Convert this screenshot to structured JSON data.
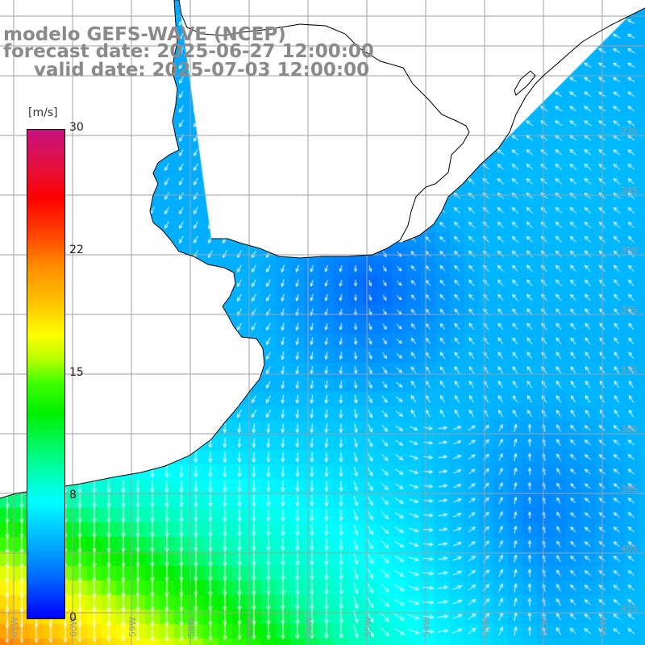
{
  "header": {
    "model": "modelo GEFS-WAVE (NCEP)",
    "forecast_date": "forecast date: 2025-06-27 12:00:00",
    "valid_date": "valid date: 2025-07-03 12:00:00"
  },
  "colorbar": {
    "unit": "[m/s]",
    "ticks": [
      "30",
      "22",
      "15",
      "8",
      "0"
    ],
    "min": 0,
    "max": 30,
    "colors": [
      "#0000ff",
      "#0064ff",
      "#00b4ff",
      "#00ffff",
      "#00ffb0",
      "#00f000",
      "#3cff00",
      "#b6ff00",
      "#ffff00",
      "#ffc800",
      "#ff8c00",
      "#ff4a00",
      "#ff0000",
      "#e6103a",
      "#c81380"
    ]
  },
  "map": {
    "lon_labels": [
      "61W",
      "60W",
      "59W",
      "58W",
      "57W",
      "56W",
      "55W",
      "54W",
      "53W",
      "52W",
      "51W"
    ],
    "lat_labels": [
      "33S",
      "34S",
      "35S",
      "36S",
      "37S",
      "38S",
      "39S",
      "40S",
      "41S"
    ],
    "grid_color": "#a0a0a0",
    "land_color": "#ffffff",
    "coastline_color": "#000000",
    "arrow_color": "#ffffff",
    "field": "wind speed and direction"
  }
}
